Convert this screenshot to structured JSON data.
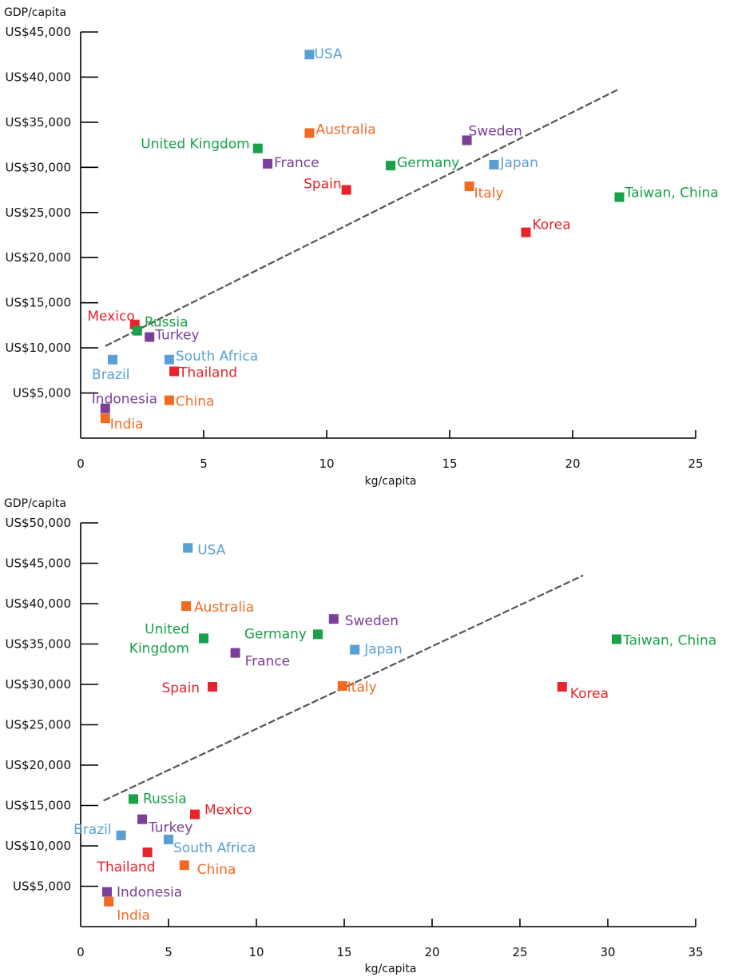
{
  "colors": {
    "blue": "#5a9fd4",
    "orange": "#f26a22",
    "red": "#e8232a",
    "green": "#18a04a",
    "purple": "#7b3f98"
  },
  "chart_data": [
    {
      "type": "scatter",
      "title": "",
      "xlabel": "kg/capita",
      "ylabel": "GDP/capita",
      "xlim": [
        0,
        25
      ],
      "ylim": [
        0,
        45000
      ],
      "x_ticks": [
        "0",
        "5",
        "10",
        "15",
        "20",
        "25"
      ],
      "y_ticks": [
        "US$5,000",
        "US$10,000",
        "US$15,000",
        "US$20,000",
        "US$25,000",
        "US$30,000",
        "US$35,000",
        "US$40,000",
        "US$45,000"
      ],
      "trendline": {
        "x": [
          1.0,
          21.9
        ],
        "y": [
          10200,
          38700
        ]
      },
      "points": [
        {
          "label": "USA",
          "x": 9.3,
          "y": 42500,
          "color": "blue"
        },
        {
          "label": "Australia",
          "x": 9.3,
          "y": 33800,
          "color": "orange"
        },
        {
          "label": "Sweden",
          "x": 15.7,
          "y": 33000,
          "color": "purple"
        },
        {
          "label": "United Kingdom",
          "x": 7.2,
          "y": 32100,
          "color": "green"
        },
        {
          "label": "France",
          "x": 7.6,
          "y": 30400,
          "color": "purple"
        },
        {
          "label": "Germany",
          "x": 12.6,
          "y": 30200,
          "color": "green"
        },
        {
          "label": "Japan",
          "x": 16.8,
          "y": 30300,
          "color": "blue"
        },
        {
          "label": "Spain",
          "x": 10.8,
          "y": 27500,
          "color": "red"
        },
        {
          "label": "Italy",
          "x": 15.8,
          "y": 27900,
          "color": "orange"
        },
        {
          "label": "Taiwan, China",
          "x": 21.9,
          "y": 26700,
          "color": "green"
        },
        {
          "label": "Korea",
          "x": 18.1,
          "y": 22800,
          "color": "red"
        },
        {
          "label": "Mexico",
          "x": 2.2,
          "y": 12600,
          "color": "red"
        },
        {
          "label": "Russia",
          "x": 2.3,
          "y": 11900,
          "color": "green"
        },
        {
          "label": "Turkey",
          "x": 2.8,
          "y": 11200,
          "color": "purple"
        },
        {
          "label": "Brazil",
          "x": 1.3,
          "y": 8700,
          "color": "blue"
        },
        {
          "label": "South Africa",
          "x": 3.6,
          "y": 8700,
          "color": "blue"
        },
        {
          "label": "Thailand",
          "x": 3.8,
          "y": 7400,
          "color": "red"
        },
        {
          "label": "China",
          "x": 3.6,
          "y": 4200,
          "color": "orange"
        },
        {
          "label": "Indonesia",
          "x": 1.0,
          "y": 3300,
          "color": "purple"
        },
        {
          "label": "India",
          "x": 1.0,
          "y": 2200,
          "color": "orange"
        }
      ]
    },
    {
      "type": "scatter",
      "title": "",
      "xlabel": "kg/capita",
      "ylabel": "GDP/capita",
      "xlim": [
        0,
        35
      ],
      "ylim": [
        0,
        50000
      ],
      "x_ticks": [
        "0",
        "5",
        "10",
        "15",
        "20",
        "25",
        "30",
        "35"
      ],
      "y_ticks": [
        "US$5,000",
        "US$10,000",
        "US$15,000",
        "US$20,000",
        "US$25,000",
        "US$30,000",
        "US$35,000",
        "US$40,000",
        "US$45,000",
        "US$50,000"
      ],
      "trendline": {
        "x": [
          1.3,
          28.6
        ],
        "y": [
          15600,
          43500
        ]
      },
      "points": [
        {
          "label": "USA",
          "x": 6.1,
          "y": 46900,
          "color": "blue"
        },
        {
          "label": "Australia",
          "x": 6.0,
          "y": 39700,
          "color": "orange"
        },
        {
          "label": "Sweden",
          "x": 14.4,
          "y": 38100,
          "color": "purple"
        },
        {
          "label": "United Kingdom",
          "x": 7.0,
          "y": 35700,
          "color": "green"
        },
        {
          "label": "Germany",
          "x": 13.5,
          "y": 36200,
          "color": "green"
        },
        {
          "label": "Japan",
          "x": 15.6,
          "y": 34300,
          "color": "blue"
        },
        {
          "label": "France",
          "x": 8.8,
          "y": 33900,
          "color": "purple"
        },
        {
          "label": "Taiwan, China",
          "x": 30.5,
          "y": 35600,
          "color": "green"
        },
        {
          "label": "Spain",
          "x": 7.5,
          "y": 29700,
          "color": "red"
        },
        {
          "label": "Italy",
          "x": 14.9,
          "y": 29800,
          "color": "orange"
        },
        {
          "label": "Korea",
          "x": 27.4,
          "y": 29700,
          "color": "red"
        },
        {
          "label": "Russia",
          "x": 3.0,
          "y": 15800,
          "color": "green"
        },
        {
          "label": "Mexico",
          "x": 6.5,
          "y": 13900,
          "color": "red"
        },
        {
          "label": "Turkey",
          "x": 3.5,
          "y": 13300,
          "color": "purple"
        },
        {
          "label": "Brazil",
          "x": 2.3,
          "y": 11300,
          "color": "blue"
        },
        {
          "label": "South Africa",
          "x": 5.0,
          "y": 10800,
          "color": "blue"
        },
        {
          "label": "Thailand",
          "x": 3.8,
          "y": 9200,
          "color": "red"
        },
        {
          "label": "China",
          "x": 5.9,
          "y": 7600,
          "color": "orange"
        },
        {
          "label": "Indonesia",
          "x": 1.5,
          "y": 4300,
          "color": "purple"
        },
        {
          "label": "India",
          "x": 1.6,
          "y": 3100,
          "color": "orange"
        }
      ]
    }
  ]
}
